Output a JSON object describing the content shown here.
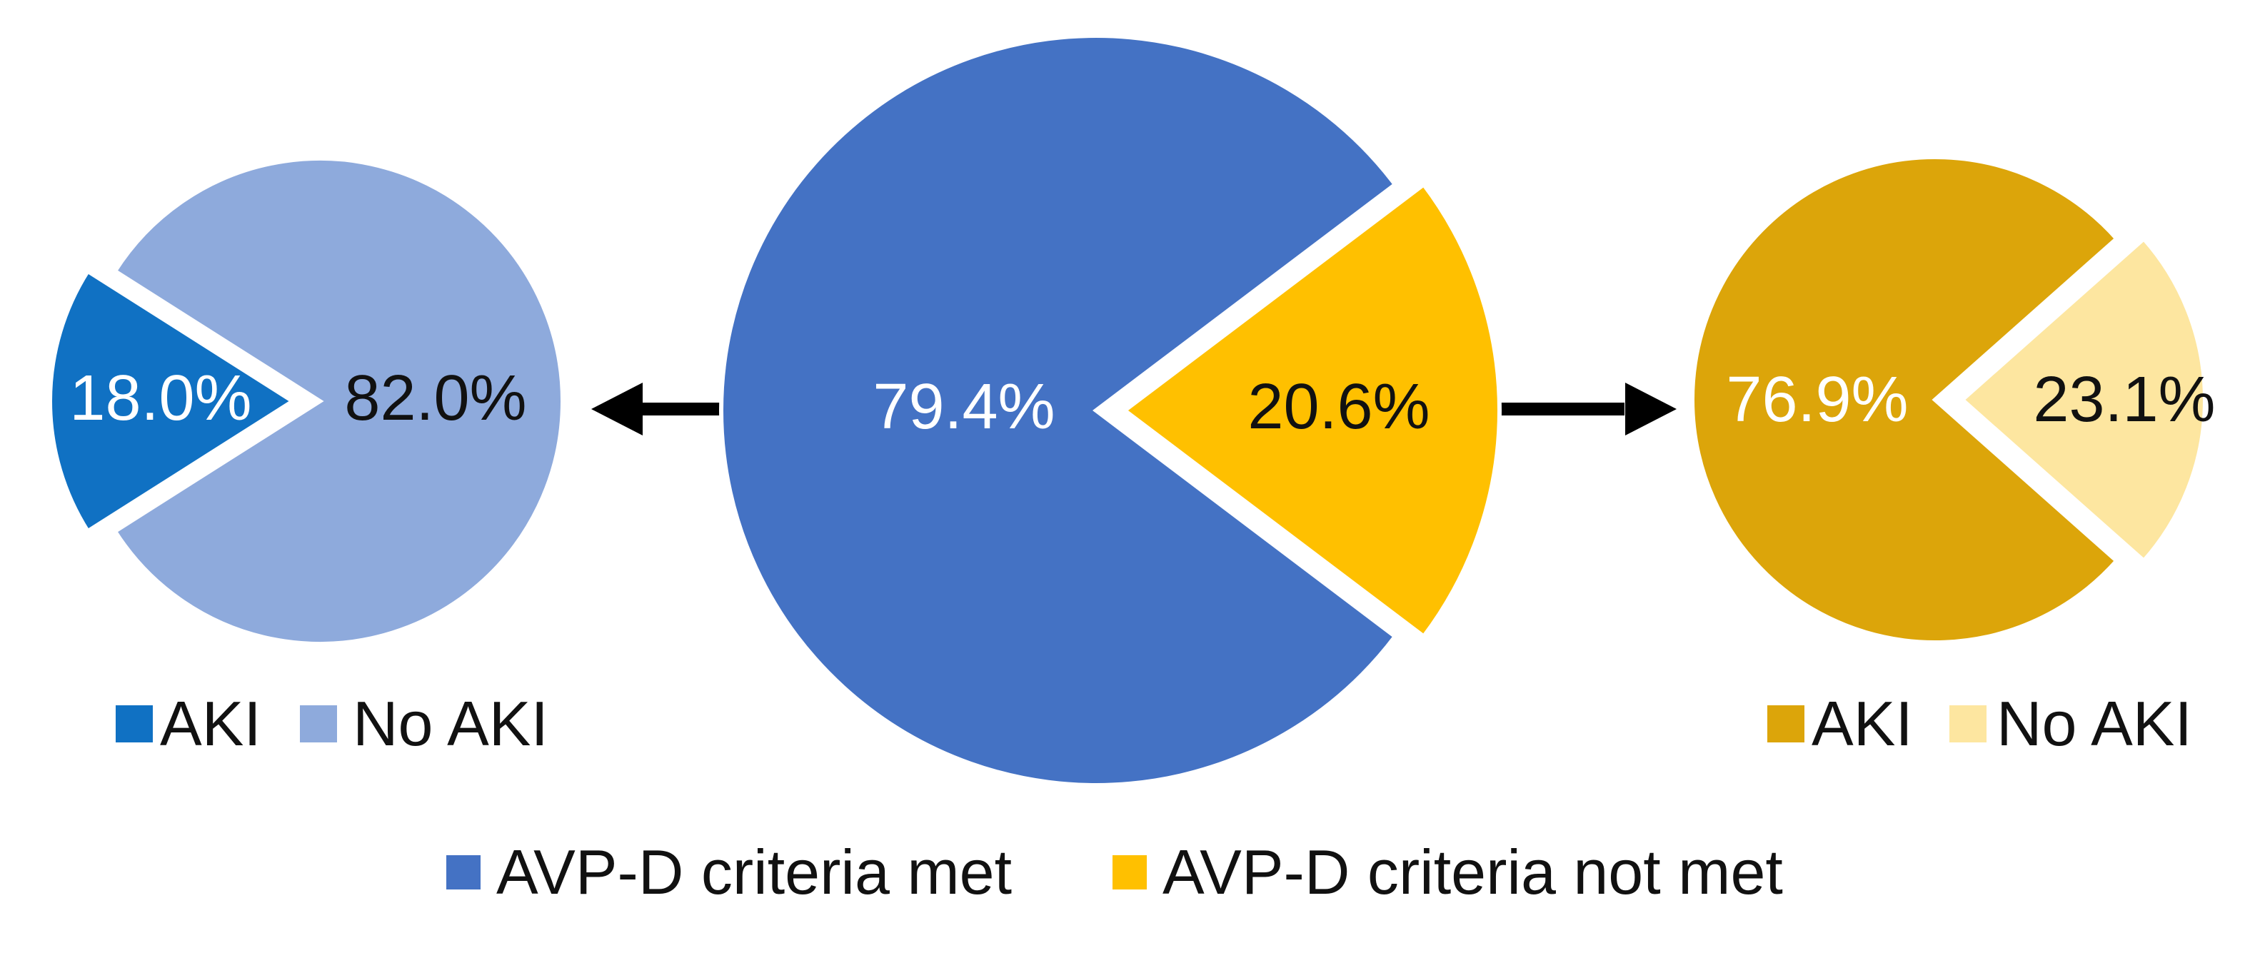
{
  "chart_data": [
    {
      "type": "pie",
      "categories": [
        "AKI",
        "No AKI"
      ],
      "values": [
        18.0,
        82.0
      ],
      "labels": [
        "18.0%",
        "82.0%"
      ],
      "colors": [
        "#1071c3",
        "#8eaadc"
      ],
      "label_colors": [
        "#ffffff",
        "#111111"
      ],
      "legend": [
        "AKI",
        "No AKI"
      ],
      "legend_placement": "bottom",
      "exploded": [
        true,
        false
      ]
    },
    {
      "type": "pie",
      "categories": [
        "AVP-D criteria met",
        "AVP-D criteria not met"
      ],
      "values": [
        79.4,
        20.6
      ],
      "labels": [
        "79.4%",
        "20.6%"
      ],
      "colors": [
        "#4472c4",
        "#ffc000"
      ],
      "label_colors": [
        "#ffffff",
        "#111111"
      ],
      "legend": [
        "AVP-D criteria met",
        "AVP-D criteria not met"
      ],
      "legend_placement": "bottom",
      "exploded": [
        false,
        true
      ]
    },
    {
      "type": "pie",
      "categories": [
        "AKI",
        "No AKI"
      ],
      "values": [
        76.9,
        23.1
      ],
      "labels": [
        "76.9%",
        "23.1%"
      ],
      "colors": [
        "#dca50a",
        "#fde6a0"
      ],
      "label_colors": [
        "#ffffff",
        "#111111"
      ],
      "legend": [
        "AKI",
        "No AKI"
      ],
      "legend_placement": "bottom",
      "exploded": [
        false,
        true
      ]
    }
  ]
}
